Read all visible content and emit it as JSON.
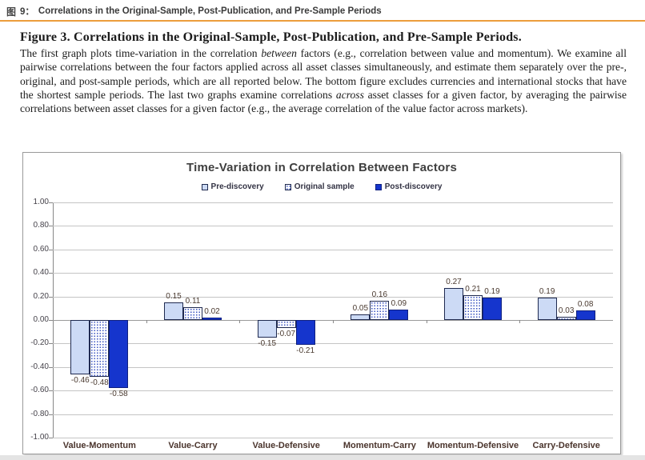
{
  "header": {
    "icon": "图",
    "number": "9：",
    "title": "Correlations in the Original-Sample, Post-Publication, and Pre-Sample Periods"
  },
  "caption": {
    "title": "Figure 3. Correlations in the Original-Sample, Post-Publication, and Pre-Sample Periods.",
    "body": {
      "part1": "The first graph plots time-variation in the correlation ",
      "italic1": "between",
      "part2": " factors (e.g., correlation between value and momentum). We examine all pairwise correlations between the four factors applied across all asset classes simultaneously, and estimate them separately over the pre-, original, and post-sample periods, which are all reported below. The bottom figure excludes currencies and international stocks that have the shortest sample periods. The last two graphs examine correlations ",
      "italic2": "across",
      "part3": " asset classes for a given factor, by averaging the pairwise correlations between asset classes for a given factor (e.g., the average correlation of the value factor across markets)."
    }
  },
  "chart_data": {
    "type": "bar",
    "title": "Time-Variation in Correlation Between Factors",
    "categories": [
      "Value-Momentum",
      "Value-Carry",
      "Value-Defensive",
      "Momentum-Carry",
      "Momentum-Defensive",
      "Carry-Defensive"
    ],
    "series": [
      {
        "name": "Pre-discovery",
        "style": "light",
        "values": [
          -0.46,
          0.15,
          -0.15,
          0.05,
          0.27,
          0.19
        ]
      },
      {
        "name": "Original sample",
        "style": "dotted",
        "values": [
          -0.48,
          0.11,
          -0.07,
          0.16,
          0.21,
          0.03
        ]
      },
      {
        "name": "Post-discovery",
        "style": "solid",
        "values": [
          -0.58,
          0.02,
          -0.21,
          0.09,
          0.19,
          0.08
        ]
      }
    ],
    "ylim": [
      -1.0,
      1.0
    ],
    "ytick_step": 0.2,
    "yticks": [
      "1.00",
      "0.80",
      "0.60",
      "0.40",
      "0.20",
      "0.00",
      "-0.20",
      "-0.40",
      "-0.60",
      "-0.80",
      "-1.00"
    ],
    "grid": true,
    "legend_position": "top-center"
  },
  "colors": {
    "accent_rule": "#ec9d3c",
    "bar_light": "#ccdaf5",
    "bar_dotted_dot": "#3a55c0",
    "bar_solid": "#1535cd",
    "bar_border": "#1f2a50",
    "gridline": "#c4c4c4",
    "axis": "#888888",
    "value_label": "#4a3a30",
    "category_label": "#4a342c"
  },
  "icons": {
    "header_glyph": "figure-glyph-icon"
  }
}
